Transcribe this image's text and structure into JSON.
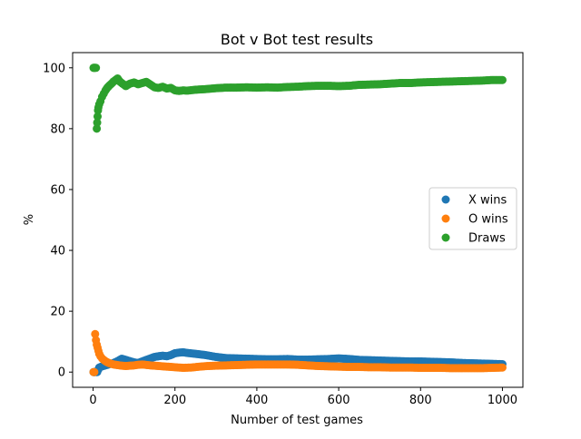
{
  "chart_data": {
    "type": "scatter",
    "title": "Bot v Bot test results",
    "xlabel": "Number of test games",
    "ylabel": "%",
    "xlim": [
      -50,
      1050
    ],
    "ylim": [
      -5,
      105
    ],
    "x_ticks": [
      0,
      200,
      400,
      600,
      800,
      1000
    ],
    "y_ticks": [
      0,
      20,
      40,
      60,
      80,
      100
    ],
    "grid": false,
    "legend_position": "center-right",
    "series": [
      {
        "name": "X wins",
        "color": "#1f77b4",
        "points": [
          [
            1,
            0
          ],
          [
            2,
            0
          ],
          [
            3,
            0
          ],
          [
            5,
            0
          ],
          [
            8,
            0
          ],
          [
            10,
            0
          ],
          [
            15,
            1.5
          ],
          [
            20,
            1.8
          ],
          [
            30,
            2.2
          ],
          [
            40,
            2.6
          ],
          [
            50,
            3
          ],
          [
            60,
            3.6
          ],
          [
            70,
            4.4
          ],
          [
            80,
            4
          ],
          [
            90,
            3.6
          ],
          [
            100,
            3.2
          ],
          [
            110,
            3
          ],
          [
            120,
            3.5
          ],
          [
            130,
            4
          ],
          [
            140,
            4.5
          ],
          [
            150,
            5
          ],
          [
            160,
            5.2
          ],
          [
            170,
            5.4
          ],
          [
            180,
            5.2
          ],
          [
            190,
            5.6
          ],
          [
            200,
            6.2
          ],
          [
            210,
            6.4
          ],
          [
            220,
            6.5
          ],
          [
            230,
            6.3
          ],
          [
            250,
            6
          ],
          [
            275,
            5.6
          ],
          [
            300,
            5
          ],
          [
            325,
            4.6
          ],
          [
            350,
            4.5
          ],
          [
            375,
            4.4
          ],
          [
            400,
            4.3
          ],
          [
            425,
            4.2
          ],
          [
            450,
            4.2
          ],
          [
            475,
            4.3
          ],
          [
            500,
            4.1
          ],
          [
            525,
            4.1
          ],
          [
            550,
            4.2
          ],
          [
            575,
            4.3
          ],
          [
            600,
            4.5
          ],
          [
            625,
            4.3
          ],
          [
            650,
            4
          ],
          [
            675,
            3.9
          ],
          [
            700,
            3.8
          ],
          [
            725,
            3.7
          ],
          [
            750,
            3.6
          ],
          [
            775,
            3.5
          ],
          [
            800,
            3.5
          ],
          [
            825,
            3.4
          ],
          [
            850,
            3.3
          ],
          [
            875,
            3.2
          ],
          [
            900,
            3
          ],
          [
            925,
            2.9
          ],
          [
            950,
            2.8
          ],
          [
            975,
            2.7
          ],
          [
            1000,
            2.6
          ]
        ]
      },
      {
        "name": "O wins",
        "color": "#ff7f0e",
        "points": [
          [
            1,
            0
          ],
          [
            3,
            0
          ],
          [
            5,
            12.5
          ],
          [
            7,
            10.5
          ],
          [
            9,
            9
          ],
          [
            11,
            8
          ],
          [
            13,
            7
          ],
          [
            15,
            6
          ],
          [
            18,
            5.2
          ],
          [
            22,
            4.5
          ],
          [
            26,
            4
          ],
          [
            30,
            3.6
          ],
          [
            35,
            3.2
          ],
          [
            40,
            2.9
          ],
          [
            45,
            2.7
          ],
          [
            50,
            2.5
          ],
          [
            60,
            2.3
          ],
          [
            70,
            2.1
          ],
          [
            80,
            2
          ],
          [
            90,
            2.1
          ],
          [
            100,
            2.2
          ],
          [
            110,
            2.4
          ],
          [
            120,
            2.5
          ],
          [
            140,
            2.2
          ],
          [
            160,
            2
          ],
          [
            180,
            1.8
          ],
          [
            200,
            1.6
          ],
          [
            220,
            1.4
          ],
          [
            240,
            1.5
          ],
          [
            260,
            1.8
          ],
          [
            280,
            2
          ],
          [
            300,
            2.1
          ],
          [
            325,
            2.2
          ],
          [
            350,
            2.3
          ],
          [
            375,
            2.4
          ],
          [
            400,
            2.5
          ],
          [
            425,
            2.5
          ],
          [
            450,
            2.5
          ],
          [
            475,
            2.5
          ],
          [
            500,
            2.4
          ],
          [
            525,
            2.2
          ],
          [
            550,
            2
          ],
          [
            575,
            1.9
          ],
          [
            600,
            1.8
          ],
          [
            625,
            1.7
          ],
          [
            650,
            1.7
          ],
          [
            675,
            1.6
          ],
          [
            700,
            1.6
          ],
          [
            725,
            1.5
          ],
          [
            750,
            1.5
          ],
          [
            775,
            1.5
          ],
          [
            800,
            1.4
          ],
          [
            825,
            1.4
          ],
          [
            850,
            1.4
          ],
          [
            875,
            1.3
          ],
          [
            900,
            1.3
          ],
          [
            925,
            1.3
          ],
          [
            950,
            1.3
          ],
          [
            975,
            1.4
          ],
          [
            1000,
            1.5
          ]
        ]
      },
      {
        "name": "Draws",
        "color": "#2ca02c",
        "points": [
          [
            1,
            100
          ],
          [
            2,
            100
          ],
          [
            3,
            100
          ],
          [
            5,
            100
          ],
          [
            7,
            100
          ],
          [
            9,
            80
          ],
          [
            10,
            82
          ],
          [
            11,
            84
          ],
          [
            12,
            86
          ],
          [
            13,
            87
          ],
          [
            15,
            88
          ],
          [
            18,
            89
          ],
          [
            22,
            90.5
          ],
          [
            26,
            91.5
          ],
          [
            30,
            92.5
          ],
          [
            35,
            93.5
          ],
          [
            40,
            94.2
          ],
          [
            45,
            94.8
          ],
          [
            50,
            95.5
          ],
          [
            55,
            96
          ],
          [
            60,
            96.5
          ],
          [
            65,
            95.5
          ],
          [
            70,
            95
          ],
          [
            75,
            94.5
          ],
          [
            80,
            94
          ],
          [
            90,
            94.8
          ],
          [
            100,
            95.2
          ],
          [
            110,
            94.6
          ],
          [
            120,
            95
          ],
          [
            130,
            95.4
          ],
          [
            140,
            94.5
          ],
          [
            150,
            93.6
          ],
          [
            160,
            93.4
          ],
          [
            170,
            93.8
          ],
          [
            180,
            93.2
          ],
          [
            190,
            93.4
          ],
          [
            200,
            92.6
          ],
          [
            210,
            92.4
          ],
          [
            220,
            92.6
          ],
          [
            230,
            92.5
          ],
          [
            250,
            92.8
          ],
          [
            275,
            93
          ],
          [
            300,
            93.3
          ],
          [
            325,
            93.5
          ],
          [
            350,
            93.5
          ],
          [
            375,
            93.6
          ],
          [
            400,
            93.5
          ],
          [
            425,
            93.6
          ],
          [
            450,
            93.5
          ],
          [
            475,
            93.7
          ],
          [
            500,
            93.8
          ],
          [
            525,
            94
          ],
          [
            550,
            94.1
          ],
          [
            575,
            94.1
          ],
          [
            600,
            94
          ],
          [
            625,
            94.1
          ],
          [
            650,
            94.4
          ],
          [
            675,
            94.5
          ],
          [
            700,
            94.6
          ],
          [
            725,
            94.8
          ],
          [
            750,
            95
          ],
          [
            775,
            95
          ],
          [
            800,
            95.2
          ],
          [
            825,
            95.3
          ],
          [
            850,
            95.4
          ],
          [
            875,
            95.5
          ],
          [
            900,
            95.6
          ],
          [
            925,
            95.7
          ],
          [
            950,
            95.8
          ],
          [
            975,
            96
          ],
          [
            1000,
            96
          ]
        ]
      }
    ]
  }
}
